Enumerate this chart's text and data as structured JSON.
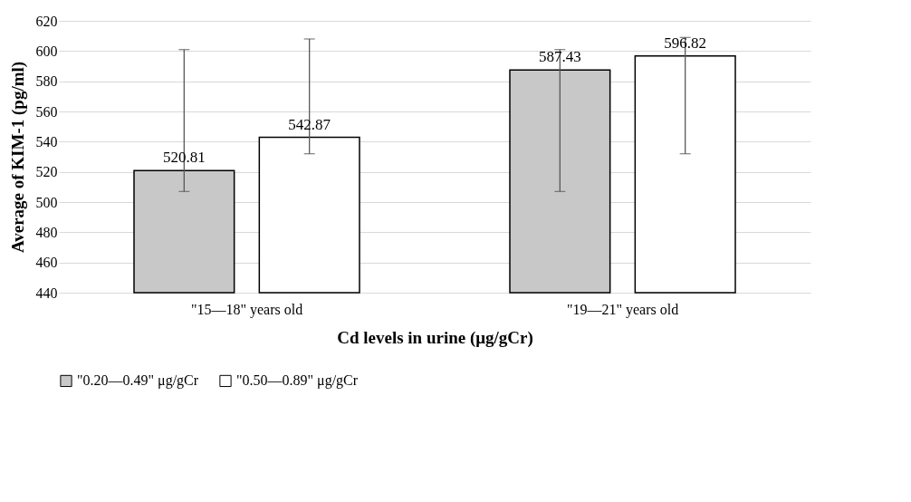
{
  "chart_data": {
    "type": "bar",
    "categories": [
      "\"15—18\" years old",
      "\"19—21\" years old"
    ],
    "xlabel": "Cd levels in urine (μg/gCr)",
    "ylabel": "Average of KIM-1 (pg/ml)",
    "series": [
      {
        "name": "\"0.20—0.49\" μg/gCr",
        "color": "#c8c8c8",
        "values": [
          520.81,
          587.43
        ],
        "errors": [
          [
            507,
            601
          ],
          [
            507,
            601
          ]
        ]
      },
      {
        "name": "\"0.50—0.89\" μg/gCr",
        "color": "#ffffff",
        "values": [
          542.87,
          596.82
        ],
        "errors": [
          [
            532,
            608
          ],
          [
            532,
            609
          ]
        ]
      }
    ],
    "ylim": [
      440,
      620
    ],
    "yticks": [
      440,
      460,
      480,
      500,
      520,
      540,
      560,
      580,
      600,
      620
    ],
    "grid": "y",
    "legend": "bottom",
    "data_labels": true
  }
}
